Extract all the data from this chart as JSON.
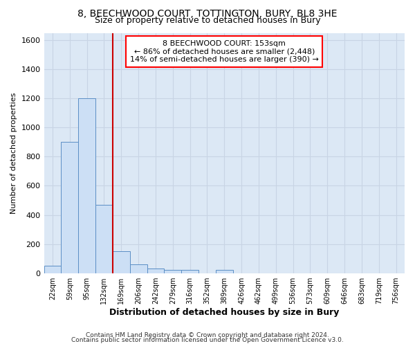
{
  "title_line1": "8, BEECHWOOD COURT, TOTTINGTON, BURY, BL8 3HE",
  "title_line2": "Size of property relative to detached houses in Bury",
  "xlabel": "Distribution of detached houses by size in Bury",
  "ylabel": "Number of detached properties",
  "footer_line1": "Contains HM Land Registry data © Crown copyright and database right 2024.",
  "footer_line2": "Contains public sector information licensed under the Open Government Licence v3.0.",
  "bin_labels": [
    "22sqm",
    "59sqm",
    "95sqm",
    "132sqm",
    "169sqm",
    "206sqm",
    "242sqm",
    "279sqm",
    "316sqm",
    "352sqm",
    "389sqm",
    "426sqm",
    "462sqm",
    "499sqm",
    "536sqm",
    "573sqm",
    "609sqm",
    "646sqm",
    "683sqm",
    "719sqm",
    "756sqm"
  ],
  "bar_values": [
    50,
    900,
    1200,
    470,
    150,
    60,
    30,
    20,
    20,
    0,
    20,
    0,
    0,
    0,
    0,
    0,
    0,
    0,
    0,
    0,
    0
  ],
  "bar_color": "#ccdff5",
  "bar_edge_color": "#5b8ec5",
  "grid_color": "#c8d4e4",
  "background_color": "#dce8f5",
  "ylim": [
    0,
    1650
  ],
  "yticks": [
    0,
    200,
    400,
    600,
    800,
    1000,
    1200,
    1400,
    1600
  ],
  "annotation_box_text": "8 BEECHWOOD COURT: 153sqm\n← 86% of detached houses are smaller (2,448)\n14% of semi-detached houses are larger (390) →",
  "vline_x_index": 3.5,
  "vline_color": "#cc0000",
  "title_fontsize": 10,
  "subtitle_fontsize": 9,
  "ylabel_fontsize": 8,
  "xlabel_fontsize": 9,
  "footer_fontsize": 6.5,
  "annot_fontsize": 8
}
